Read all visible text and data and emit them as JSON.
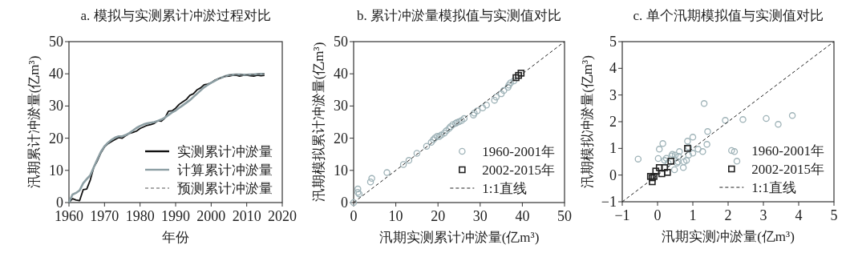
{
  "chart_data": [
    {
      "type": "line",
      "title": "a. 模拟与实测累计冲淤过程对比",
      "xlabel": "年份",
      "ylabel": "汛期累计冲淤量(亿m³)",
      "xlim": [
        1960,
        2020
      ],
      "ylim": [
        0,
        50
      ],
      "xticks": [
        1960,
        1970,
        1980,
        1990,
        2000,
        2010,
        2020
      ],
      "yticks": [
        0,
        10,
        20,
        30,
        40,
        50
      ],
      "legend": "bottom right",
      "x": [
        1960,
        1961,
        1962,
        1963,
        1964,
        1965,
        1966,
        1967,
        1968,
        1969,
        1970,
        1971,
        1972,
        1973,
        1974,
        1975,
        1976,
        1977,
        1978,
        1979,
        1980,
        1981,
        1982,
        1983,
        1984,
        1985,
        1986,
        1987,
        1988,
        1989,
        1990,
        1991,
        1992,
        1993,
        1994,
        1995,
        1996,
        1997,
        1998,
        1999,
        2000,
        2001,
        2002,
        2003,
        2004,
        2005,
        2006,
        2007,
        2008,
        2009,
        2010,
        2011,
        2012,
        2013,
        2014,
        2015
      ],
      "series": [
        {
          "name": "实测累计冲淤量",
          "color": "#111111",
          "values": [
            0,
            1.2,
            0.8,
            0.6,
            4,
            4.2,
            7,
            11,
            13,
            15.5,
            17.3,
            18.3,
            19,
            19.6,
            20.2,
            20,
            20.8,
            21.5,
            21.8,
            22.2,
            23,
            23.5,
            24,
            24.2,
            24.6,
            25.4,
            25.3,
            26.3,
            28.4,
            28.5,
            29.3,
            30.5,
            31.3,
            32,
            33.3,
            33.8,
            35,
            35.6,
            36.6,
            36.8,
            37.2,
            38,
            38.5,
            38.8,
            39.2,
            39.3,
            39.5,
            39.6,
            39.3,
            39.5,
            39.6,
            39.4,
            39.3,
            39.6,
            39.4,
            39.5
          ]
        },
        {
          "name": "计算累计冲淤量",
          "color": "#8c9ea3",
          "values": [
            0,
            2.5,
            3,
            3.8,
            6,
            7.3,
            8.5,
            11,
            13.5,
            15.8,
            17.5,
            18.6,
            19.5,
            20.2,
            20.6,
            20.6,
            21,
            21.6,
            22.4,
            23.2,
            23.8,
            24.3,
            24.6,
            24.8,
            25,
            25.4,
            25.8,
            26.4,
            27.2,
            28,
            28.6,
            29.4,
            30.2,
            31,
            31.8,
            32.8,
            33.8,
            34.8,
            35.8,
            36.5,
            37.2,
            37.8,
            38.4,
            38.9,
            39.3,
            39.6,
            39.7,
            39.8,
            39.8,
            39.7,
            39.7,
            39.8,
            39.8,
            39.9,
            40,
            40
          ]
        },
        {
          "name": "预测累计冲淤量",
          "color": "#555555",
          "line_style": "dashed",
          "x": [
            2002,
            2003,
            2004,
            2005,
            2006,
            2007,
            2008,
            2009,
            2010,
            2011,
            2012,
            2013,
            2014,
            2015
          ],
          "values": [
            38.4,
            38.9,
            39.3,
            39.6,
            39.7,
            39.8,
            39.8,
            39.7,
            39.7,
            39.8,
            39.8,
            39.9,
            40,
            40
          ]
        }
      ]
    },
    {
      "type": "scatter",
      "title": "b. 累计冲淤量模拟值与实测值对比",
      "xlabel": "汛期实测累计冲淤量(亿m³)",
      "ylabel": "汛期模拟累计冲淤量(亿m³)",
      "xlim": [
        0,
        50
      ],
      "ylim": [
        0,
        50
      ],
      "xticks": [
        0,
        10,
        20,
        30,
        40,
        50
      ],
      "yticks": [
        0,
        10,
        20,
        30,
        40,
        50
      ],
      "legend": "bottom right",
      "series": [
        {
          "name": "1960-2001年",
          "color": "#9fb3b8",
          "marker": "circle",
          "x": [
            0,
            1,
            1,
            1.3,
            4,
            4.3,
            7.9,
            11.8,
            13.1,
            15,
            17.3,
            18.4,
            18.9,
            19.3,
            19.8,
            20.3,
            20.8,
            21.5,
            22,
            22.6,
            23,
            23.5,
            24.2,
            24.5,
            25,
            25.6,
            26.2,
            28.4,
            28.6,
            29.3,
            30.6,
            31.5,
            33.4,
            33.8,
            35,
            35.6,
            36.6,
            36.8,
            37.2,
            38
          ],
          "values": [
            0,
            4.2,
            3.2,
            2.7,
            6.4,
            7.5,
            9.3,
            11.8,
            13.1,
            15.3,
            17.5,
            18.7,
            19.5,
            20.1,
            20.6,
            20.5,
            21,
            21.6,
            22.3,
            23,
            23.6,
            24.2,
            24.6,
            24.9,
            25.1,
            25.5,
            26.1,
            27.2,
            27.8,
            28.5,
            29.4,
            30.3,
            31.8,
            32.8,
            33.8,
            34.8,
            35.8,
            36.5,
            37.2,
            37.8
          ]
        },
        {
          "name": "2002-2015年",
          "color": "#222222",
          "marker": "square",
          "x": [
            38.5,
            39.1,
            39.7
          ],
          "values": [
            38.8,
            39.5,
            40.2
          ]
        },
        {
          "name": "1:1直线",
          "type": "line",
          "color": "#222222",
          "line_style": "dashed",
          "x": [
            0,
            50
          ],
          "values": [
            0,
            50
          ]
        }
      ]
    },
    {
      "type": "scatter",
      "title": "c. 单个汛期模拟值与实测值对比",
      "xlabel": "汛期实测冲淤量(亿m³)",
      "ylabel": "汛期模拟冲淤量(亿m³)",
      "xlim": [
        -1,
        5
      ],
      "ylim": [
        -1,
        5
      ],
      "xticks": [
        {
          "value": -1,
          "label": "−1"
        },
        0,
        1,
        2,
        3,
        4,
        5
      ],
      "yticks": [
        {
          "value": -1,
          "label": "−1"
        },
        0,
        1,
        2,
        3,
        4,
        5
      ],
      "legend": "bottom right",
      "series": [
        {
          "name": "1960-2001年",
          "color": "#9fb3b8",
          "marker": "circle",
          "x": [
            -0.55,
            0.02,
            0.05,
            0.15,
            0.2,
            0.25,
            0.4,
            0.42,
            0.5,
            0.55,
            0.58,
            0.6,
            0.62,
            0.48,
            0.73,
            0.75,
            0.82,
            0.85,
            0.88,
            0.88,
            1,
            1,
            1.15,
            1.28,
            1.32,
            1.4,
            1.42,
            1.92,
            2.18,
            2.25,
            2.42,
            3.08,
            3.42,
            3.82,
            0.3
          ],
          "values": [
            0.6,
            0.62,
            0.97,
            1.18,
            0.55,
            0.63,
            0.72,
            0.78,
            0.75,
            0.45,
            0.5,
            0.7,
            0.88,
            0.2,
            0.28,
            0.5,
            0.55,
            1.27,
            0.75,
            1.05,
            1.42,
            0.82,
            0.97,
            0.88,
            2.68,
            1.15,
            1.63,
            2.05,
            0.88,
            0.52,
            2.08,
            2.12,
            1.9,
            2.23,
            0.45
          ]
        },
        {
          "name": "2002-2015年",
          "color": "#222222",
          "marker": "square",
          "x": [
            -0.2,
            -0.15,
            -0.1,
            -0.05,
            0.05,
            0.2,
            0.28,
            0.38,
            0.85,
            0.12,
            -0.15
          ],
          "values": [
            -0.05,
            -0.25,
            -0.05,
            0.15,
            0.28,
            0.28,
            0.1,
            0.52,
            1.0,
            0.05,
            -0.1
          ]
        },
        {
          "name": "1:1直线",
          "type": "line",
          "color": "#222222",
          "line_style": "dashed",
          "x": [
            -1,
            5
          ],
          "values": [
            -1,
            5
          ]
        }
      ]
    }
  ]
}
